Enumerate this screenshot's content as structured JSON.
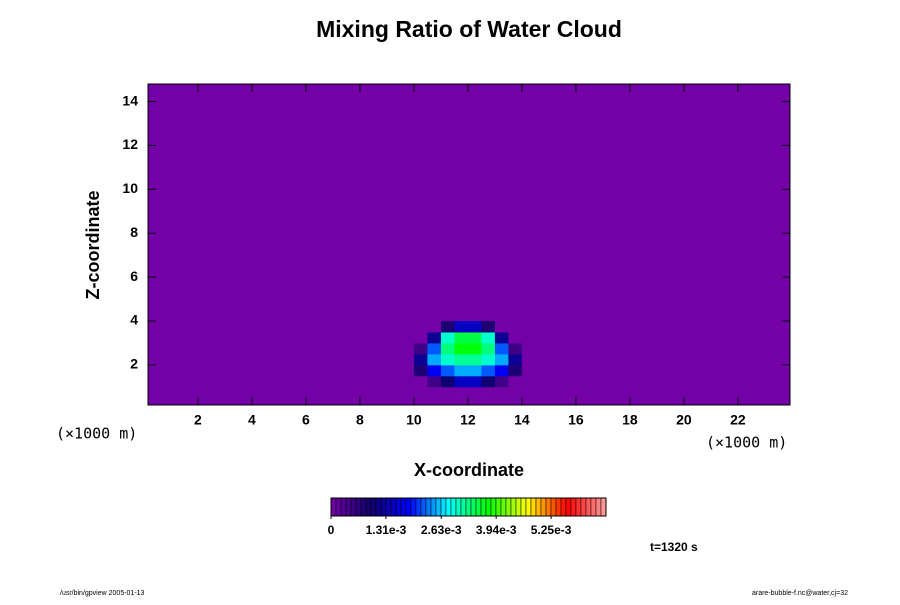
{
  "chart_data": {
    "type": "contour",
    "title": "Mixing Ratio of Water Cloud",
    "x_label": "X-coordinate",
    "y_label": "Z-coordinate",
    "x_unit": "(×1000 m)",
    "y_unit": "(×1000 m)",
    "xlim": [
      0.15,
      23.93
    ],
    "ylim": [
      0.17,
      14.8
    ],
    "xticks": [
      2,
      4,
      6,
      8,
      10,
      12,
      14,
      16,
      18,
      20,
      22
    ],
    "yticks": [
      2,
      4,
      6,
      8,
      10,
      12,
      14
    ],
    "x": [
      9.75,
      10.25,
      10.75,
      11.25,
      11.75,
      12.25,
      12.75,
      13.25,
      13.75,
      14.25
    ],
    "y": [
      1.25,
      1.75,
      2.25,
      2.75,
      3.25,
      3.75
    ],
    "z": [
      [
        0,
        0,
        0.0005,
        0.001,
        0.0015,
        0.0015,
        0.001,
        0.0005,
        0,
        0
      ],
      [
        0,
        0.0008,
        0.0018,
        0.0022,
        0.0025,
        0.0025,
        0.0022,
        0.0018,
        0.0008,
        0
      ],
      [
        0,
        0.0012,
        0.0025,
        0.003,
        0.0032,
        0.0032,
        0.003,
        0.0025,
        0.0012,
        0
      ],
      [
        0,
        0.0005,
        0.0022,
        0.0033,
        0.0037,
        0.0037,
        0.0033,
        0.0022,
        0.0005,
        0
      ],
      [
        0,
        0,
        0.0012,
        0.003,
        0.0035,
        0.0035,
        0.003,
        0.0012,
        0,
        0
      ],
      [
        0,
        0,
        0,
        0.0008,
        0.0015,
        0.0015,
        0.0008,
        0,
        0,
        0
      ]
    ],
    "colorbar_lim": [
      0,
      0.00656
    ],
    "colorbar_ticks": [
      0,
      {
        "value": 0.00131,
        "label": "1.31e-3"
      },
      {
        "value": 0.00263,
        "label": "2.63e-3"
      },
      {
        "value": 0.00394,
        "label": "3.94e-3"
      },
      {
        "value": 0.00525,
        "label": "5.25e-3"
      }
    ],
    "colormap": [
      "#7400a8",
      "#10006a",
      "#0000ff",
      "#00ffff",
      "#00ff00",
      "#ffff00",
      "#ff0000",
      "#ffa0a0"
    ],
    "time_label": "t=1320 s",
    "footer_left": "/usr/bin/gpview 2005-01-13",
    "footer_right": "arare-bubble-f.nc@water,cj=32"
  }
}
